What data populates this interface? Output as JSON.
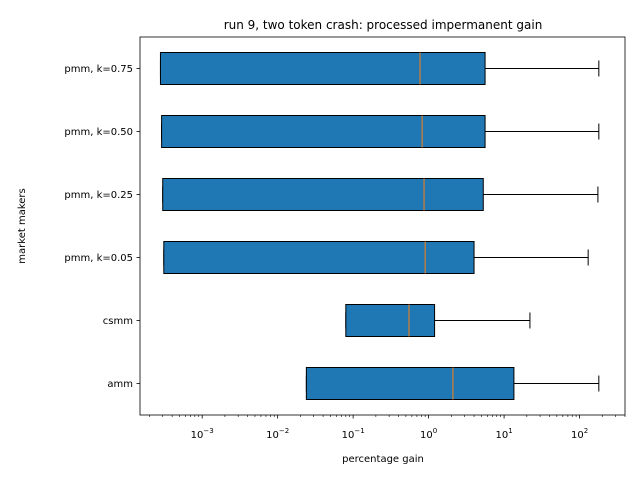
{
  "chart_data": {
    "type": "boxplot",
    "orientation": "horizontal",
    "title": "run 9, two token crash: processed impermanent gain",
    "xlabel": "percentage gain",
    "ylabel": "market makers",
    "xscale": "log",
    "xlim": [
      0.00015,
      400
    ],
    "x_ticks": [
      {
        "value": 0.001,
        "base": "10",
        "exp": "−3"
      },
      {
        "value": 0.01,
        "base": "10",
        "exp": "−2"
      },
      {
        "value": 0.1,
        "base": "10",
        "exp": "−1"
      },
      {
        "value": 1,
        "base": "10",
        "exp": "0"
      },
      {
        "value": 10,
        "base": "10",
        "exp": "1"
      },
      {
        "value": 100,
        "base": "10",
        "exp": "2"
      }
    ],
    "grid": false,
    "colors": {
      "box_fill": "#1f77b4",
      "median": "#ff7f0e",
      "edge": "#000000"
    },
    "series": [
      {
        "name": "pmm, k=0.75",
        "q1": 0.00028,
        "median": 0.77,
        "q3": 5.6,
        "whisker_low": 0.00028,
        "whisker_high": 180
      },
      {
        "name": "pmm, k=0.50",
        "q1": 0.00029,
        "median": 0.82,
        "q3": 5.6,
        "whisker_low": 0.00029,
        "whisker_high": 180
      },
      {
        "name": "pmm, k=0.25",
        "q1": 0.0003,
        "median": 0.87,
        "q3": 5.3,
        "whisker_low": 0.0003,
        "whisker_high": 175
      },
      {
        "name": "pmm, k=0.05",
        "q1": 0.00031,
        "median": 0.9,
        "q3": 4.0,
        "whisker_low": 0.00031,
        "whisker_high": 130
      },
      {
        "name": "csmm",
        "q1": 0.08,
        "median": 0.55,
        "q3": 1.2,
        "whisker_low": 0.08,
        "whisker_high": 22
      },
      {
        "name": "amm",
        "q1": 0.024,
        "median": 2.1,
        "q3": 13.5,
        "whisker_low": 0.024,
        "whisker_high": 180
      }
    ]
  }
}
